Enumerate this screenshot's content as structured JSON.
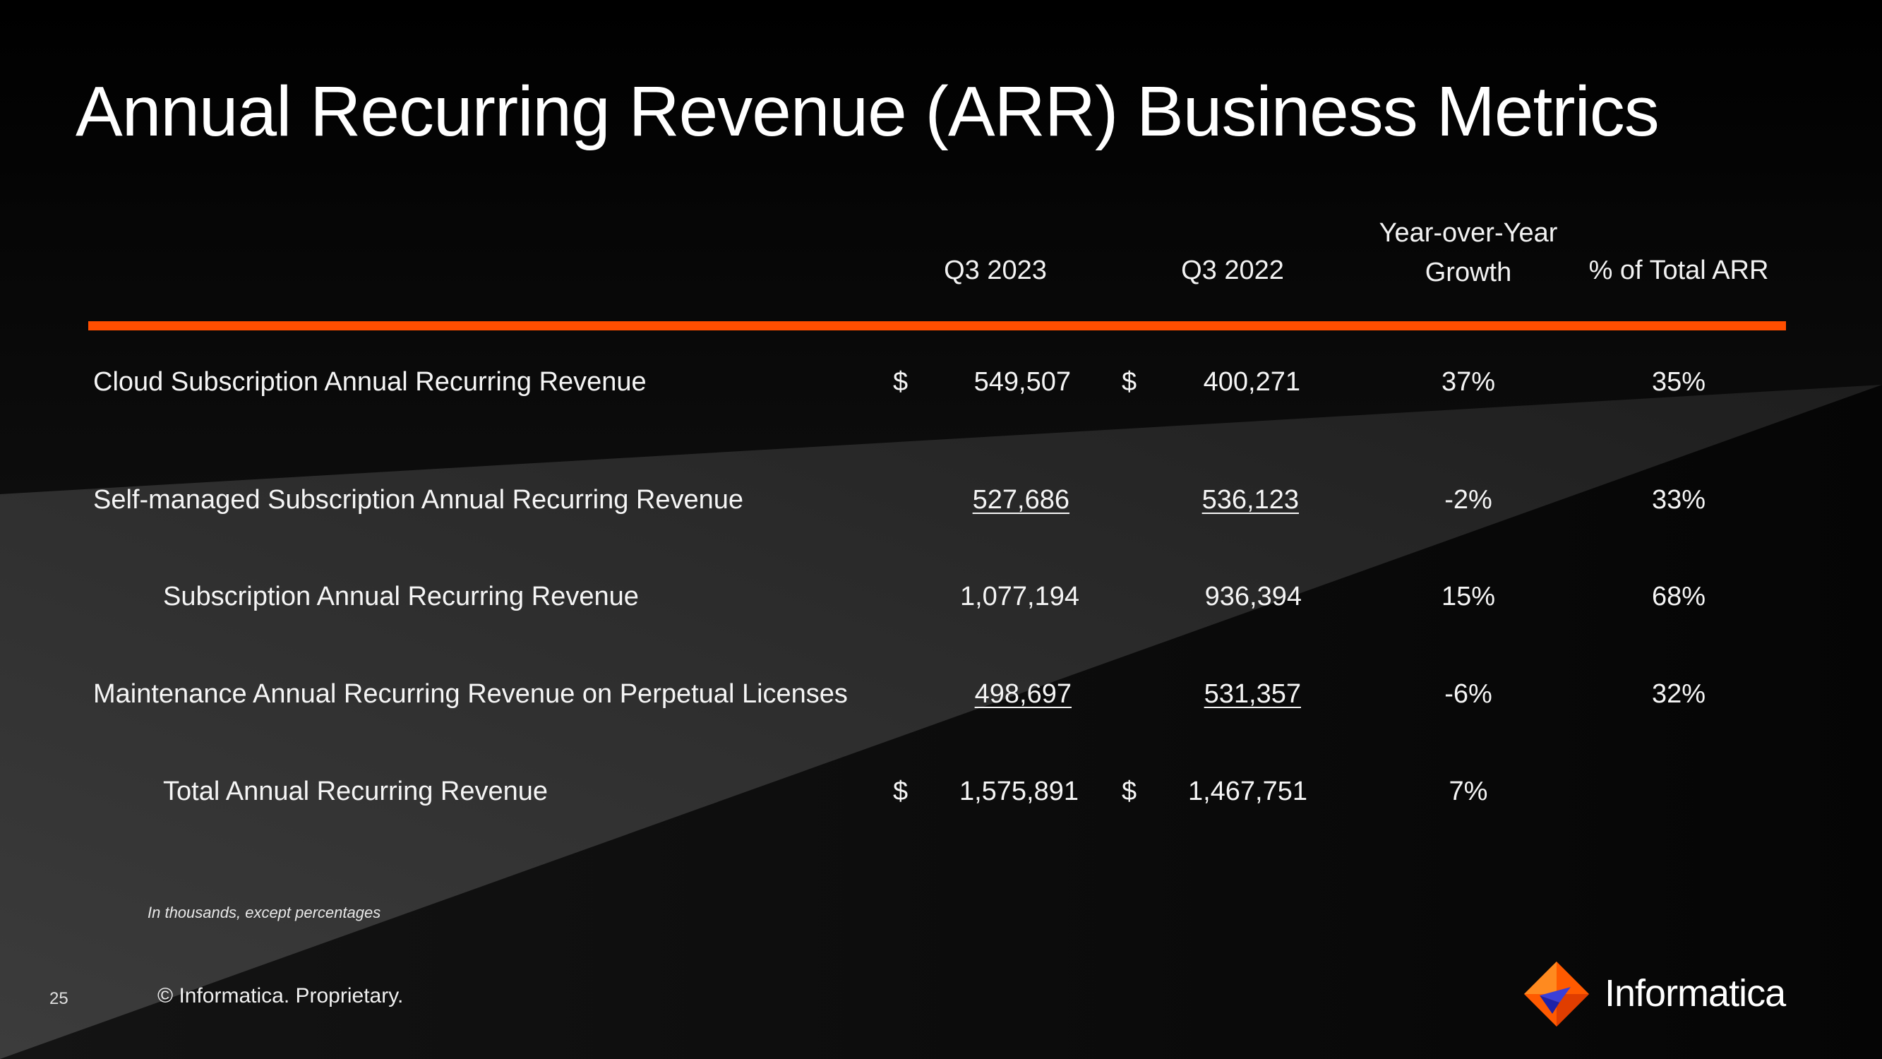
{
  "slide": {
    "title": "Annual Recurring Revenue (ARR)  Business Metrics",
    "page_number": "25",
    "copyright": "© Informatica. Proprietary.",
    "footnote": "In thousands, except percentages",
    "logo_text": "Informatica",
    "accent_color": "#ff4e00"
  },
  "table": {
    "columns": [
      "Q3 2023",
      "Q3 2022",
      "Year-over-Year",
      "Growth",
      "% of Total ARR"
    ],
    "rows": [
      {
        "label": "Cloud Subscription Annual Recurring Revenue",
        "cur_prefix": "$",
        "q3_2023": "549,507",
        "prev_prefix": "$",
        "q3_2022": "400,271",
        "yoy": "37%",
        "pct_total": "35%"
      },
      {
        "label": "Self-managed Subscription Annual Recurring Revenue",
        "q3_2023": "527,686",
        "q3_2022": "536,123",
        "yoy": "-2%",
        "pct_total": "33%"
      },
      {
        "label": "Subscription Annual Recurring Revenue",
        "q3_2023": "1,077,194",
        "q3_2022": "936,394",
        "yoy": "15%",
        "pct_total": "68%"
      },
      {
        "label": "Maintenance Annual Recurring Revenue on Perpetual Licenses",
        "q3_2023": "498,697",
        "q3_2022": "531,357",
        "yoy": "-6%",
        "pct_total": "32%"
      },
      {
        "label": "Total Annual Recurring Revenue",
        "cur_prefix": "$",
        "q3_2023": "1,575,891",
        "prev_prefix": "$",
        "q3_2022": "1,467,751",
        "yoy": "7%"
      }
    ]
  }
}
